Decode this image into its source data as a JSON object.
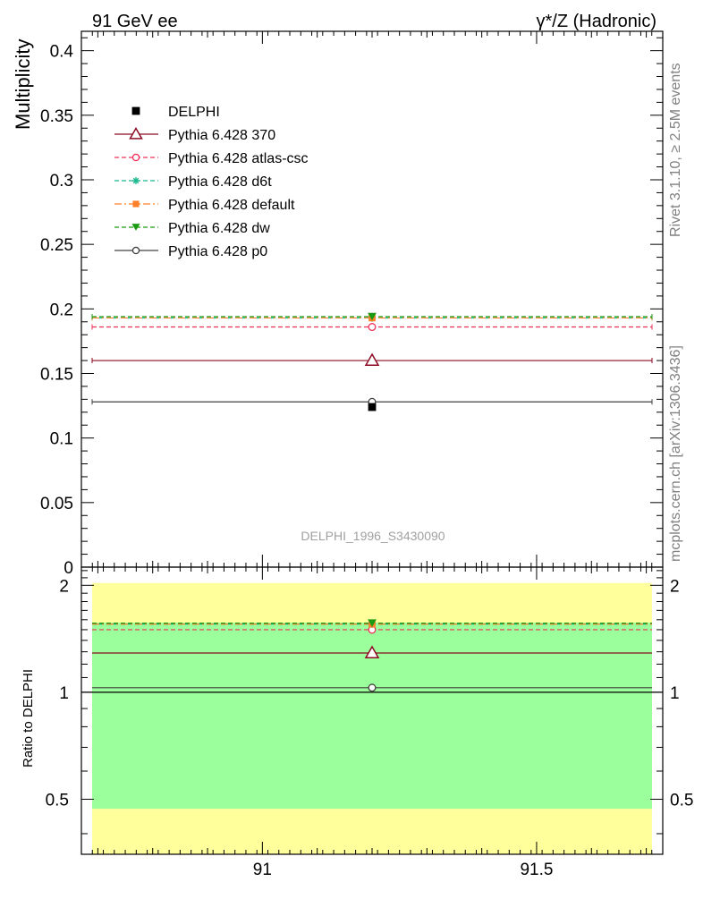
{
  "header": {
    "left": "91 GeV ee",
    "right": "γ*/Z (Hadronic)"
  },
  "side_labels": {
    "top": "Rivet 3.1.10, ≥ 2.5M events",
    "bottom": "mcplots.cern.ch [arXiv:1306.3436]"
  },
  "analysis_id": "DELPHI_1996_S3430090",
  "chart_data": [
    {
      "type": "scatter",
      "panel": "main",
      "ylabel": "Multiplicity",
      "xlim": [
        90.67,
        91.73
      ],
      "ylim": [
        0,
        0.415
      ],
      "x_range": [
        90.67,
        91.73
      ],
      "yticks": [
        0,
        0.05,
        0.1,
        0.15,
        0.2,
        0.25,
        0.3,
        0.35,
        0.4
      ],
      "ytick_labels": [
        "0",
        "0.05",
        "0.1",
        "0.15",
        "0.2",
        "0.25",
        "0.3",
        "0.35",
        "0.4"
      ],
      "legend_position": "top-left",
      "data": {
        "name": "DELPHI",
        "x": 91.2,
        "y": 0.124,
        "color": "#000000",
        "marker": "square"
      },
      "series": [
        {
          "name": "Pythia 6.428 370",
          "y": 0.16,
          "color": "#8b0a22",
          "marker": "triangle-open",
          "dash": "solid"
        },
        {
          "name": "Pythia 6.428 atlas-csc",
          "y": 0.186,
          "color": "#f0305a",
          "marker": "circle-open",
          "dash": "dashed"
        },
        {
          "name": "Pythia 6.428 d6t",
          "y": 0.193,
          "color": "#18b890",
          "marker": "star",
          "dash": "dashed"
        },
        {
          "name": "Pythia 6.428 default",
          "y": 0.193,
          "color": "#ff7f2a",
          "marker": "square",
          "dash": "dashdot"
        },
        {
          "name": "Pythia 6.428 dw",
          "y": 0.194,
          "color": "#1a9a10",
          "marker": "triangle-down",
          "dash": "dashed"
        },
        {
          "name": "Pythia 6.428 p0",
          "y": 0.128,
          "color": "#404040",
          "marker": "circle-open",
          "dash": "solid"
        }
      ]
    },
    {
      "type": "scatter",
      "panel": "ratio",
      "ylabel": "Ratio to DELPHI",
      "xlim": [
        90.67,
        91.73
      ],
      "ylim": [
        0.35,
        2.25
      ],
      "xticks": [
        91,
        91.5
      ],
      "xtick_labels": [
        "91",
        "91.5"
      ],
      "yticks": [
        0.5,
        1,
        2
      ],
      "ytick_labels": [
        "0.5",
        "1",
        "2"
      ],
      "band_1sigma": [
        0.47,
        1.57
      ],
      "band_2sigma": [
        0.35,
        2.03
      ],
      "series": [
        {
          "name": "Pythia 6.428 370",
          "ratio": 1.29,
          "color": "#8b0a22",
          "marker": "triangle-open",
          "dash": "solid"
        },
        {
          "name": "Pythia 6.428 atlas-csc",
          "ratio": 1.5,
          "color": "#f0305a",
          "marker": "circle-open",
          "dash": "dashed"
        },
        {
          "name": "Pythia 6.428 d6t",
          "ratio": 1.555,
          "color": "#18b890",
          "marker": "star",
          "dash": "dashed"
        },
        {
          "name": "Pythia 6.428 default",
          "ratio": 1.555,
          "color": "#ff7f2a",
          "marker": "square",
          "dash": "dashdot"
        },
        {
          "name": "Pythia 6.428 dw",
          "ratio": 1.565,
          "color": "#1a9a10",
          "marker": "triangle-down",
          "dash": "dashed"
        },
        {
          "name": "Pythia 6.428 p0",
          "ratio": 1.03,
          "color": "#404040",
          "marker": "circle-open",
          "dash": "solid"
        }
      ]
    }
  ],
  "colors": {
    "band_inner": "#9bff9b",
    "band_outer": "#ffff9b",
    "axis": "#000000",
    "side_text": "#808080"
  }
}
